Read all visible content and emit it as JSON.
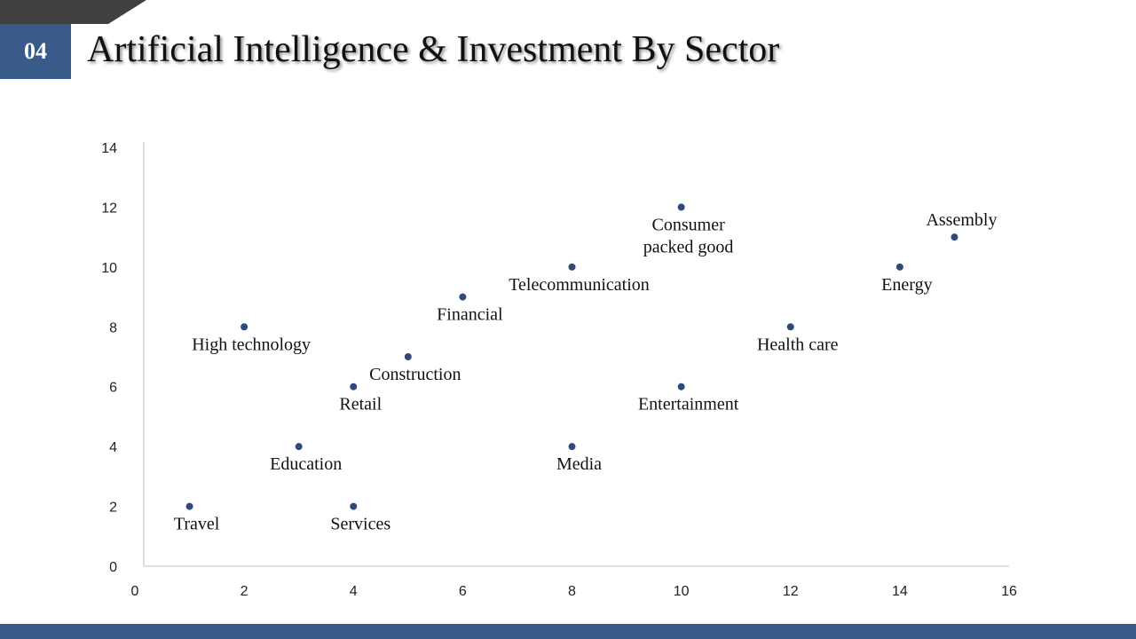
{
  "slide": {
    "number": "04",
    "title": "Artificial Intelligence & Investment By Sector"
  },
  "colors": {
    "accent": "#3a5a8a",
    "wedge": "#404040",
    "marker": "#2f4a7a",
    "axis": "#bfbfbf"
  },
  "chart_data": {
    "type": "scatter",
    "title": "",
    "xlabel": "",
    "ylabel": "",
    "xlim": [
      0,
      16
    ],
    "ylim": [
      0,
      14
    ],
    "xticks": [
      0,
      2,
      4,
      6,
      8,
      10,
      12,
      14,
      16
    ],
    "yticks": [
      0,
      2,
      4,
      6,
      8,
      10,
      12,
      14
    ],
    "grid": false,
    "legend": "none",
    "points": [
      {
        "label": "Travel",
        "x": 1,
        "y": 2,
        "label_pos": "below"
      },
      {
        "label": "High technology",
        "x": 2,
        "y": 8,
        "label_pos": "below"
      },
      {
        "label": "Education",
        "x": 3,
        "y": 4,
        "label_pos": "below"
      },
      {
        "label": "Retail",
        "x": 4,
        "y": 6,
        "label_pos": "below"
      },
      {
        "label": "Services",
        "x": 4,
        "y": 2,
        "label_pos": "below"
      },
      {
        "label": "Construction",
        "x": 5,
        "y": 7,
        "label_pos": "below"
      },
      {
        "label": "Financial",
        "x": 6,
        "y": 9,
        "label_pos": "below"
      },
      {
        "label": "Telecommunication",
        "x": 8,
        "y": 10,
        "label_pos": "below"
      },
      {
        "label": "Media",
        "x": 8,
        "y": 4,
        "label_pos": "below"
      },
      {
        "label": "Consumer packed good",
        "x": 10,
        "y": 12,
        "label_pos": "below",
        "label_lines": [
          "Consumer",
          "packed good"
        ]
      },
      {
        "label": "Entertainment",
        "x": 10,
        "y": 6,
        "label_pos": "below"
      },
      {
        "label": "Health care",
        "x": 12,
        "y": 8,
        "label_pos": "below"
      },
      {
        "label": "Energy",
        "x": 14,
        "y": 10,
        "label_pos": "below"
      },
      {
        "label": "Assembly",
        "x": 15,
        "y": 11,
        "label_pos": "above"
      }
    ]
  }
}
